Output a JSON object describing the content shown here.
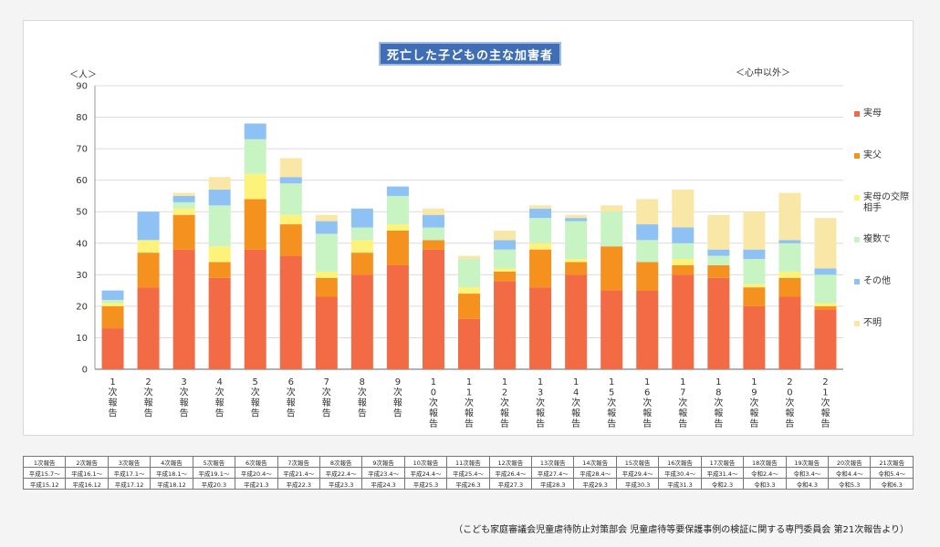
{
  "chart_data": {
    "type": "bar",
    "stacked": true,
    "title": "死亡した子どもの主な加害者",
    "y_unit_label": "＜人＞",
    "note_label": "＜心中以外＞",
    "ylim": [
      0,
      90
    ],
    "yticks": [
      0,
      10,
      20,
      30,
      40,
      50,
      60,
      70,
      80,
      90
    ],
    "grid": true,
    "legend_position": "right",
    "categories": [
      "1次報告",
      "2次報告",
      "3次報告",
      "4次報告",
      "5次報告",
      "6次報告",
      "7次報告",
      "8次報告",
      "9次報告",
      "10次報告",
      "11次報告",
      "12次報告",
      "13次報告",
      "14次報告",
      "15次報告",
      "16次報告",
      "17次報告",
      "18次報告",
      "19次報告",
      "20次報告",
      "21次報告"
    ],
    "category_lines": [
      [
        "1",
        "次",
        "報",
        "告"
      ],
      [
        "2",
        "次",
        "報",
        "告"
      ],
      [
        "3",
        "次",
        "報",
        "告"
      ],
      [
        "4",
        "次",
        "報",
        "告"
      ],
      [
        "5",
        "次",
        "報",
        "告"
      ],
      [
        "6",
        "次",
        "報",
        "告"
      ],
      [
        "7",
        "次",
        "報",
        "告"
      ],
      [
        "8",
        "次",
        "報",
        "告"
      ],
      [
        "9",
        "次",
        "報",
        "告"
      ],
      [
        "1",
        "0",
        "次",
        "報",
        "告"
      ],
      [
        "1",
        "1",
        "次",
        "報",
        "告"
      ],
      [
        "1",
        "2",
        "次",
        "報",
        "告"
      ],
      [
        "1",
        "3",
        "次",
        "報",
        "告"
      ],
      [
        "1",
        "4",
        "次",
        "報",
        "告"
      ],
      [
        "1",
        "5",
        "次",
        "報",
        "告"
      ],
      [
        "1",
        "6",
        "次",
        "報",
        "告"
      ],
      [
        "1",
        "7",
        "次",
        "報",
        "告"
      ],
      [
        "1",
        "8",
        "次",
        "報",
        "告"
      ],
      [
        "1",
        "9",
        "次",
        "報",
        "告"
      ],
      [
        "2",
        "0",
        "次",
        "報",
        "告"
      ],
      [
        "2",
        "1",
        "次",
        "報",
        "告"
      ]
    ],
    "series": [
      {
        "name": "実母",
        "color": "#f26b45",
        "values": [
          13,
          26,
          38,
          29,
          38,
          36,
          23,
          30,
          33,
          38,
          16,
          28,
          26,
          30,
          25,
          25,
          30,
          29,
          20,
          23,
          19
        ]
      },
      {
        "name": "実父",
        "color": "#f5911e",
        "values": [
          7,
          11,
          11,
          5,
          16,
          10,
          6,
          7,
          11,
          3,
          8,
          3,
          12,
          4,
          14,
          9,
          3,
          4,
          6,
          6,
          1
        ]
      },
      {
        "name": "実母の交際相手",
        "color": "#fdf27a",
        "values": [
          1,
          4,
          2,
          5,
          8,
          3,
          2,
          4,
          2,
          0,
          2,
          1,
          2,
          1,
          0,
          0,
          2,
          0,
          1,
          2,
          1
        ]
      },
      {
        "name": "複数で",
        "color": "#c8f3c3",
        "values": [
          1,
          0,
          2,
          13,
          11,
          10,
          12,
          4,
          9,
          4,
          9,
          6,
          8,
          12,
          11,
          7,
          5,
          3,
          8,
          9,
          9
        ]
      },
      {
        "name": "その他",
        "color": "#8ec2f4",
        "values": [
          3,
          9,
          2,
          5,
          5,
          2,
          4,
          6,
          3,
          4,
          0,
          3,
          3,
          1,
          0,
          5,
          5,
          2,
          3,
          1,
          2
        ]
      },
      {
        "name": "不明",
        "color": "#f8e7a6",
        "values": [
          0,
          0,
          1,
          4,
          0,
          6,
          2,
          0,
          0,
          2,
          1,
          3,
          1,
          1,
          2,
          8,
          12,
          11,
          12,
          15,
          16
        ]
      }
    ],
    "legend_lines": [
      [
        "実母"
      ],
      [
        "実父"
      ],
      [
        "実母の交際",
        "相手"
      ],
      [
        "複数で"
      ],
      [
        "その他"
      ],
      [
        "不明"
      ]
    ]
  },
  "period_table": [
    [
      "1次報告",
      "2次報告",
      "3次報告",
      "4次報告",
      "5次報告",
      "6次報告",
      "7次報告",
      "8次報告",
      "9次報告",
      "10次報告",
      "11次報告",
      "12次報告",
      "13次報告",
      "14次報告",
      "15次報告",
      "16次報告",
      "17次報告",
      "18次報告",
      "19次報告",
      "20次報告",
      "21次報告"
    ],
    [
      "平成15.7～",
      "平成16.1～",
      "平成17.1～",
      "平成18.1～",
      "平成19.1～",
      "平成20.4～",
      "平成21.4～",
      "平成22.4～",
      "平成23.4～",
      "平成24.4～",
      "平成25.4～",
      "平成26.4～",
      "平成27.4～",
      "平成28.4～",
      "平成29.4～",
      "平成30.4～",
      "平成31.4～",
      "令和2.4～",
      "令和3.4～",
      "令和4.4～",
      "令和5.4～"
    ],
    [
      "平成15.12",
      "平成16.12",
      "平成17.12",
      "平成18.12",
      "平成20.3",
      "平成21.3",
      "平成22.3",
      "平成23.3",
      "平成24.3",
      "平成25.3",
      "平成26.3",
      "平成27.3",
      "平成28.3",
      "平成29.3",
      "平成30.3",
      "平成31.3",
      "令和2.3",
      "令和3.3",
      "令和4.3",
      "令和5.3",
      "令和6.3"
    ]
  ],
  "source_note": "（こども家庭審議会児童虐待防止対策部会 児童虐待等要保護事例の検証に関する専門委員会 第21次報告より）"
}
